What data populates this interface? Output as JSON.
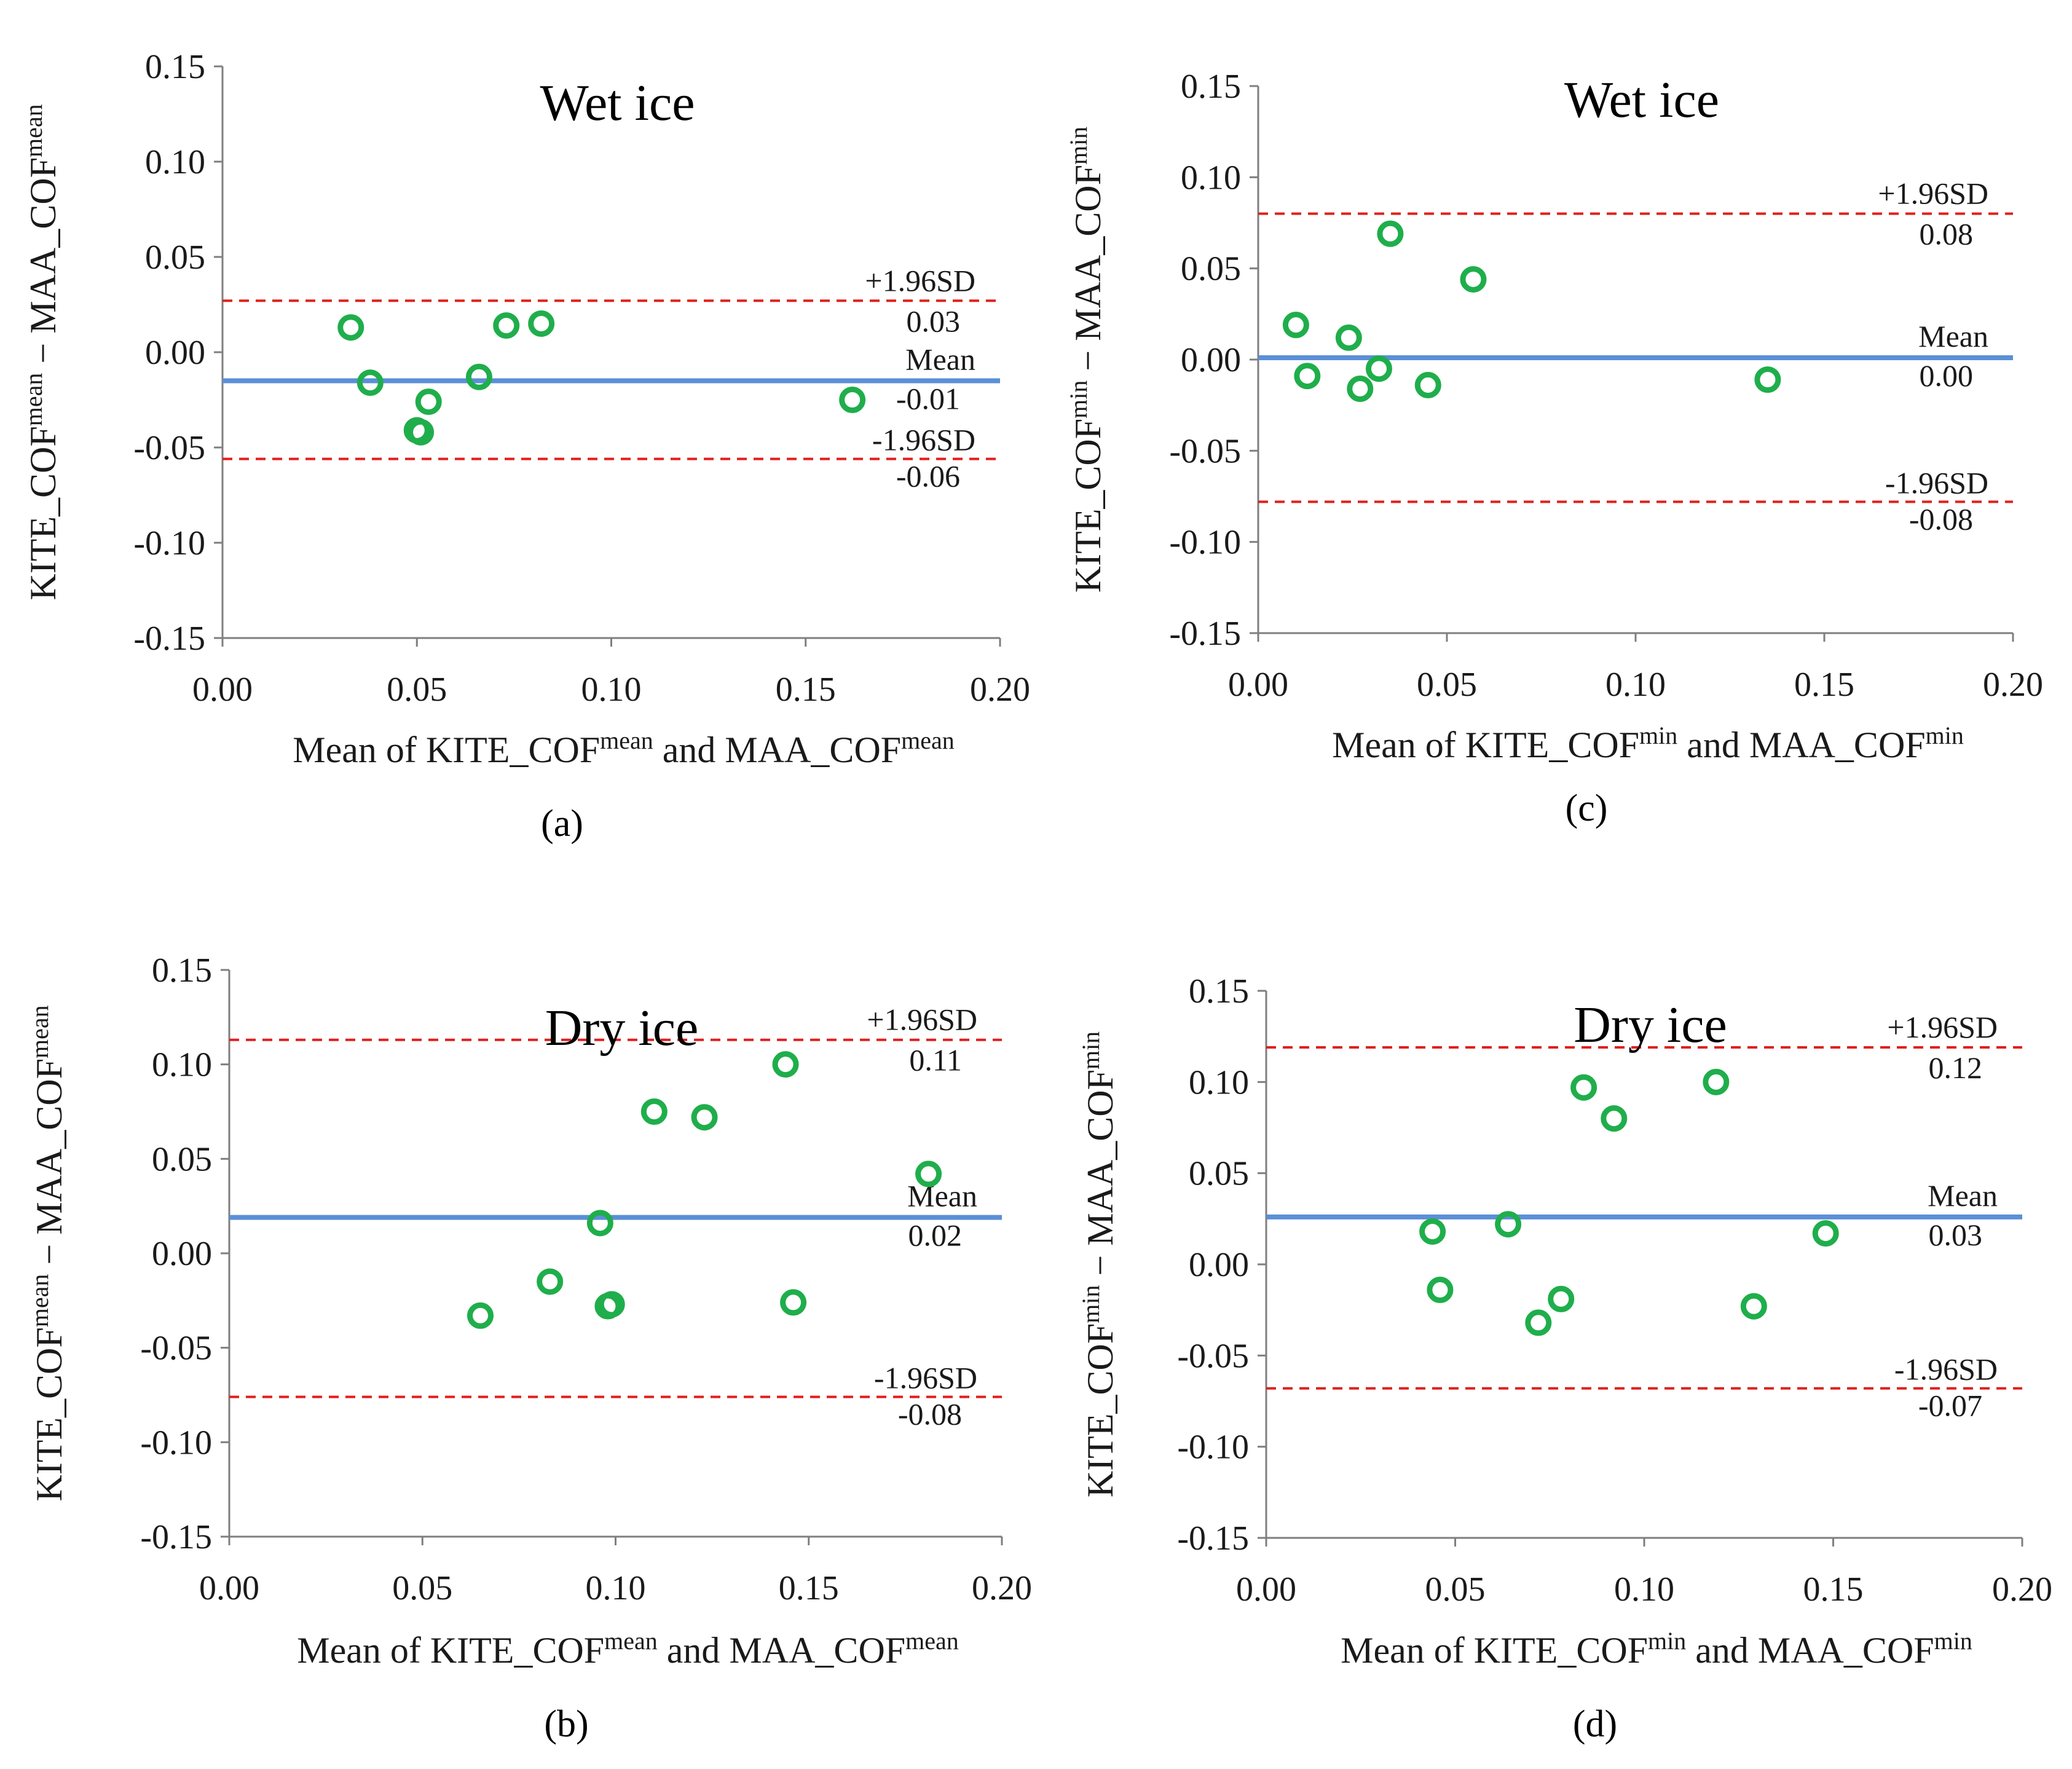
{
  "colors": {
    "point": "#1fae4b",
    "mean_line": "#5b8fd6",
    "sd_line": "#e0201c",
    "axis": "#7f7f7f"
  },
  "chart_data": [
    {
      "id": "a",
      "type": "scatter",
      "title": "Wet ice",
      "panel_label": "(a)",
      "xlabel": {
        "p1": "Mean of KITE_COF",
        "s1": "mean",
        "p2": " and MAA_COF",
        "s2": "mean"
      },
      "ylabel": {
        "p1": "KITE_COF",
        "s1": "mean",
        "p2": " − MAA_COF",
        "s2": "mean"
      },
      "xlim": [
        0,
        0.2
      ],
      "ylim": [
        -0.15,
        0.15
      ],
      "xticks": [
        "0.00",
        "0.05",
        "0.10",
        "0.15",
        "0.20"
      ],
      "yticks": [
        "0.15",
        "0.10",
        "0.05",
        "0.00",
        "-0.05",
        "-0.10",
        "-0.15"
      ],
      "reference_lines": {
        "upper": {
          "label": "+1.96SD",
          "value_label": "0.03",
          "value": 0.027
        },
        "mean": {
          "label": "Mean",
          "value_label": "-0.01",
          "value": -0.015
        },
        "lower": {
          "label": "-1.96SD",
          "value_label": "-0.06",
          "value": -0.056
        }
      },
      "points": [
        {
          "x": 0.033,
          "y": 0.013
        },
        {
          "x": 0.038,
          "y": -0.016
        },
        {
          "x": 0.05,
          "y": -0.041
        },
        {
          "x": 0.051,
          "y": -0.042
        },
        {
          "x": 0.053,
          "y": -0.026
        },
        {
          "x": 0.066,
          "y": -0.013
        },
        {
          "x": 0.073,
          "y": 0.014
        },
        {
          "x": 0.082,
          "y": 0.015
        },
        {
          "x": 0.162,
          "y": -0.025
        }
      ]
    },
    {
      "id": "c",
      "type": "scatter",
      "title": "Wet ice",
      "panel_label": "(c)",
      "xlabel": {
        "p1": "Mean of KITE_COF",
        "s1": "min",
        "p2": " and MAA_COF",
        "s2": "min"
      },
      "ylabel": {
        "p1": "KITE_COF",
        "s1": "min",
        "p2": " − MAA_COF",
        "s2": "min"
      },
      "xlim": [
        0,
        0.2
      ],
      "ylim": [
        -0.15,
        0.15
      ],
      "xticks": [
        "0.00",
        "0.05",
        "0.10",
        "0.15",
        "0.20"
      ],
      "yticks": [
        "0.15",
        "0.10",
        "0.05",
        "0.00",
        "-0.05",
        "-0.10",
        "-0.15"
      ],
      "reference_lines": {
        "upper": {
          "label": "+1.96SD",
          "value_label": "0.08",
          "value": 0.08
        },
        "mean": {
          "label": "Mean",
          "value_label": "0.00",
          "value": 0.001
        },
        "lower": {
          "label": "-1.96SD",
          "value_label": "-0.08",
          "value": -0.078
        }
      },
      "points": [
        {
          "x": 0.01,
          "y": 0.019
        },
        {
          "x": 0.013,
          "y": -0.009
        },
        {
          "x": 0.024,
          "y": 0.012
        },
        {
          "x": 0.027,
          "y": -0.016
        },
        {
          "x": 0.032,
          "y": -0.005
        },
        {
          "x": 0.035,
          "y": 0.069
        },
        {
          "x": 0.045,
          "y": -0.014
        },
        {
          "x": 0.057,
          "y": 0.044
        },
        {
          "x": 0.135,
          "y": -0.011
        }
      ]
    },
    {
      "id": "b",
      "type": "scatter",
      "title": "Dry ice",
      "panel_label": "(b)",
      "xlabel": {
        "p1": "Mean of KITE_COF",
        "s1": "mean",
        "p2": " and MAA_COF",
        "s2": "mean"
      },
      "ylabel": {
        "p1": "KITE_COF",
        "s1": "mean",
        "p2": " − MAA_COF",
        "s2": "mean"
      },
      "xlim": [
        0,
        0.2
      ],
      "ylim": [
        -0.15,
        0.15
      ],
      "xticks": [
        "0.00",
        "0.05",
        "0.10",
        "0.15",
        "0.20"
      ],
      "yticks": [
        "0.15",
        "0.10",
        "0.05",
        "0.00",
        "-0.05",
        "-0.10",
        "-0.15"
      ],
      "reference_lines": {
        "upper": {
          "label": "+1.96SD",
          "value_label": "0.11",
          "value": 0.113
        },
        "mean": {
          "label": "Mean",
          "value_label": "0.02",
          "value": 0.019
        },
        "lower": {
          "label": "-1.96SD",
          "value_label": "-0.08",
          "value": -0.076
        }
      },
      "points": [
        {
          "x": 0.065,
          "y": -0.033
        },
        {
          "x": 0.083,
          "y": -0.015
        },
        {
          "x": 0.096,
          "y": 0.016
        },
        {
          "x": 0.098,
          "y": -0.028
        },
        {
          "x": 0.099,
          "y": -0.027
        },
        {
          "x": 0.11,
          "y": 0.075
        },
        {
          "x": 0.123,
          "y": 0.072
        },
        {
          "x": 0.144,
          "y": 0.1
        },
        {
          "x": 0.146,
          "y": -0.026
        },
        {
          "x": 0.181,
          "y": 0.042
        }
      ]
    },
    {
      "id": "d",
      "type": "scatter",
      "title": "Dry ice",
      "panel_label": "(d)",
      "xlabel": {
        "p1": "Mean of KITE_COF",
        "s1": "min",
        "p2": " and MAA_COF",
        "s2": "min"
      },
      "ylabel": {
        "p1": "KITE_COF",
        "s1": "min",
        "p2": " − MAA_COF",
        "s2": "min"
      },
      "xlim": [
        0,
        0.2
      ],
      "ylim": [
        -0.15,
        0.15
      ],
      "xticks": [
        "0.00",
        "0.05",
        "0.10",
        "0.15",
        "0.20"
      ],
      "yticks": [
        "0.15",
        "0.10",
        "0.05",
        "0.00",
        "-0.05",
        "-0.10",
        "-0.15"
      ],
      "reference_lines": {
        "upper": {
          "label": "+1.96SD",
          "value_label": "0.12",
          "value": 0.119
        },
        "mean": {
          "label": "Mean",
          "value_label": "0.03",
          "value": 0.026
        },
        "lower": {
          "label": "-1.96SD",
          "value_label": "-0.07",
          "value": -0.068
        }
      },
      "points": [
        {
          "x": 0.044,
          "y": 0.018
        },
        {
          "x": 0.046,
          "y": -0.014
        },
        {
          "x": 0.064,
          "y": 0.022
        },
        {
          "x": 0.072,
          "y": -0.032
        },
        {
          "x": 0.078,
          "y": -0.019
        },
        {
          "x": 0.084,
          "y": 0.097
        },
        {
          "x": 0.092,
          "y": 0.08
        },
        {
          "x": 0.119,
          "y": 0.1
        },
        {
          "x": 0.129,
          "y": -0.023
        },
        {
          "x": 0.148,
          "y": 0.017
        }
      ]
    }
  ]
}
